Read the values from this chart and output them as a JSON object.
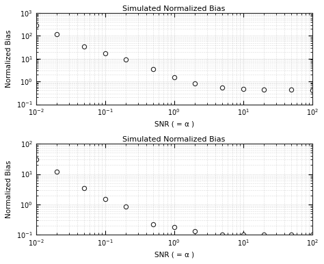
{
  "title": "Simulated Normalized Bias",
  "xlabel": "SNR ( = α )",
  "ylabel": "Normalized Bias",
  "plot1": {
    "x": [
      0.01,
      0.02,
      0.05,
      0.1,
      0.2,
      0.5,
      1.0,
      2.0,
      5.0,
      10.0,
      20.0,
      50.0,
      100.0
    ],
    "y": [
      300.0,
      120.0,
      35.0,
      17.0,
      9.0,
      3.5,
      1.5,
      0.85,
      0.55,
      0.48,
      0.45,
      0.45,
      0.42
    ],
    "ylim": [
      0.1,
      1000.0
    ],
    "yticks": [
      0.1,
      1.0,
      10.0,
      100.0,
      1000.0
    ],
    "ytick_labels": [
      "10$^{-1}$",
      "10$^{0}$",
      "10$^{1}$",
      "10$^{2}$",
      "10$^{3}$"
    ]
  },
  "plot2": {
    "x": [
      0.01,
      0.02,
      0.05,
      0.1,
      0.2,
      0.5,
      1.0,
      2.0,
      5.0,
      10.0,
      20.0,
      50.0,
      100.0
    ],
    "y": [
      30.0,
      12.0,
      3.5,
      1.5,
      0.85,
      0.22,
      0.18,
      0.13,
      0.1,
      0.1,
      0.1,
      0.1,
      0.1
    ],
    "ylim": [
      0.1,
      100.0
    ],
    "yticks": [
      0.1,
      1.0,
      10.0,
      100.0
    ],
    "ytick_labels": [
      "10$^{-1}$",
      "10$^{0}$",
      "10$^{1}$",
      "10$^{2}$"
    ]
  },
  "xlim": [
    0.01,
    100.0
  ],
  "xticks": [
    0.01,
    0.1,
    1.0,
    10.0,
    100.0
  ],
  "xtick_labels": [
    "10$^{-2}$",
    "10$^{-1}$",
    "10$^{0}$",
    "10$^{1}$",
    "10$^{2}$"
  ],
  "marker": "o",
  "marker_facecolor": "white",
  "marker_edgecolor": "#222222",
  "marker_size": 4.5,
  "marker_edgewidth": 0.8,
  "grid_color": "#bbbbbb",
  "grid_linestyle": ":",
  "grid_linewidth_major": 0.5,
  "grid_linewidth_minor": 0.4,
  "bg_color": "#ffffff",
  "title_fontsize": 8,
  "label_fontsize": 7.5,
  "tick_fontsize": 7
}
